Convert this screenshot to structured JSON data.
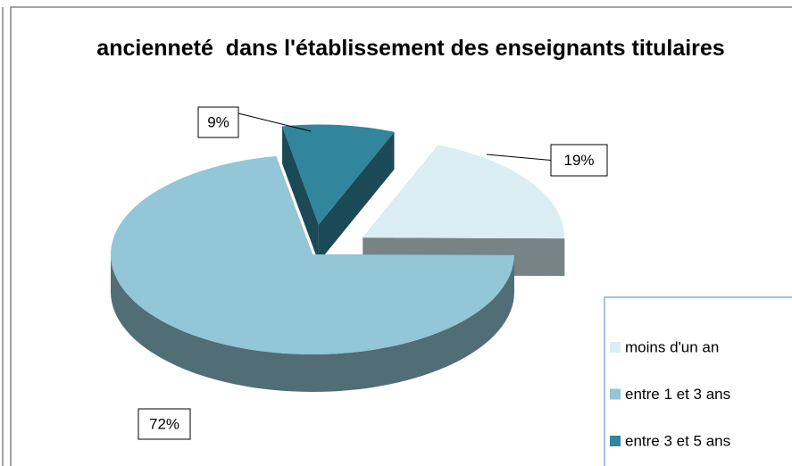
{
  "chart_data": {
    "type": "pie",
    "title": "ancienneté  dans l'établissement des enseignants titulaires",
    "categories": [
      "moins d'un an",
      "entre 1 et 3 ans",
      "entre 3 et 5 ans"
    ],
    "values": [
      19,
      72,
      9
    ],
    "value_labels": [
      "19%",
      "72%",
      "9%"
    ],
    "colors": [
      "#daeef3",
      "#93c6d6",
      "#31859c"
    ],
    "legend": "right"
  }
}
